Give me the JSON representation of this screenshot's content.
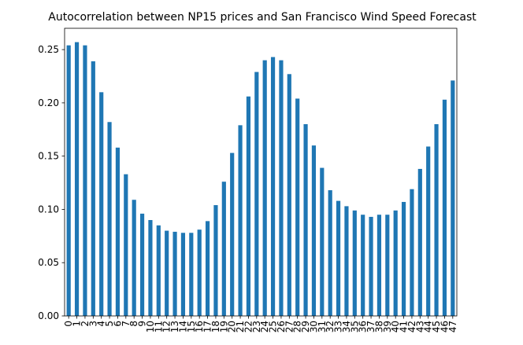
{
  "chart_data": {
    "type": "bar",
    "title": "Autocorrelation between NP15 prices and San Francisco Wind Speed Forecast",
    "xlabel": "",
    "ylabel": "",
    "categories": [
      "0",
      "1",
      "2",
      "3",
      "4",
      "5",
      "6",
      "7",
      "8",
      "9",
      "10",
      "11",
      "12",
      "13",
      "14",
      "15",
      "16",
      "17",
      "18",
      "19",
      "20",
      "21",
      "22",
      "23",
      "24",
      "25",
      "26",
      "27",
      "28",
      "29",
      "30",
      "31",
      "32",
      "33",
      "34",
      "35",
      "36",
      "37",
      "38",
      "39",
      "40",
      "41",
      "42",
      "43",
      "44",
      "45",
      "46",
      "47"
    ],
    "values": [
      0.254,
      0.257,
      0.254,
      0.239,
      0.21,
      0.182,
      0.158,
      0.133,
      0.109,
      0.096,
      0.09,
      0.085,
      0.08,
      0.079,
      0.078,
      0.078,
      0.081,
      0.089,
      0.104,
      0.126,
      0.153,
      0.179,
      0.206,
      0.229,
      0.24,
      0.243,
      0.24,
      0.227,
      0.204,
      0.18,
      0.16,
      0.139,
      0.118,
      0.108,
      0.103,
      0.099,
      0.095,
      0.093,
      0.095,
      0.095,
      0.099,
      0.107,
      0.119,
      0.138,
      0.159,
      0.18,
      0.203,
      0.221
    ],
    "yticks": [
      "0.00",
      "0.05",
      "0.10",
      "0.15",
      "0.20",
      "0.25"
    ],
    "ylim": [
      0,
      0.27
    ],
    "grid": false,
    "legend": "none",
    "bar_color": "#1f77b4"
  }
}
